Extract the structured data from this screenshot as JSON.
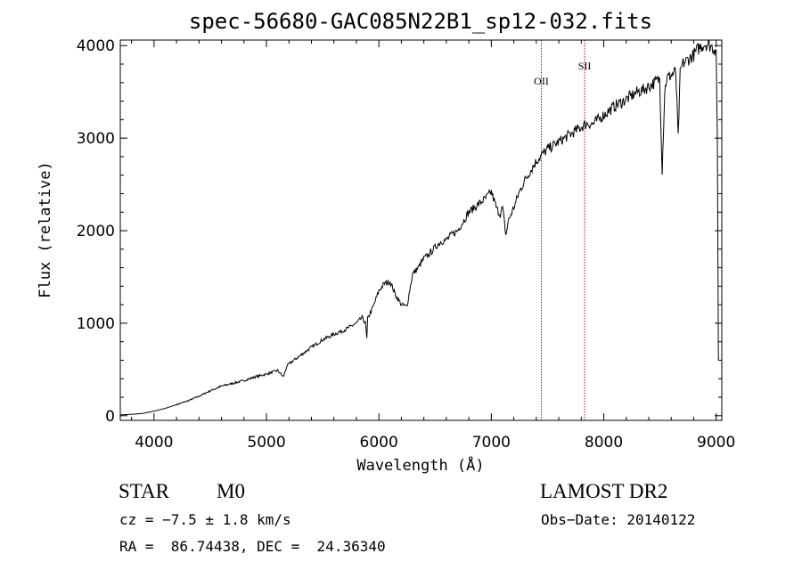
{
  "chart_data": {
    "type": "line",
    "title": "spec-56680-GAC085N22B1_sp12-032.fits",
    "xlabel": "Wavelength (Å)",
    "ylabel": "Flux (relative)",
    "xlim": [
      3700,
      9050
    ],
    "ylim": [
      -50,
      4060
    ],
    "xticks": [
      "4000",
      "5000",
      "6000",
      "7000",
      "8000",
      "9000"
    ],
    "yticks": [
      "0",
      "1000",
      "2000",
      "3000",
      "4000"
    ],
    "series": [
      {
        "x": [
          3700,
          3800,
          3900,
          4000,
          4100,
          4200,
          4300,
          4400,
          4500,
          4600,
          4700,
          4800,
          4900,
          5000,
          5100,
          5150,
          5180,
          5200,
          5300,
          5400,
          5500,
          5600,
          5700,
          5800,
          5850,
          5880,
          5893,
          5900,
          5950,
          6000,
          6050,
          6100,
          6150,
          6200,
          6250,
          6280,
          6300,
          6350,
          6400,
          6450,
          6500,
          6550,
          6600,
          6650,
          6700,
          6750,
          6800,
          6850,
          6900,
          6950,
          7000,
          7050,
          7080,
          7100,
          7130,
          7150,
          7200,
          7250,
          7300,
          7350,
          7400,
          7450,
          7500,
          7550,
          7600,
          7650,
          7700,
          7750,
          7800,
          7850,
          7900,
          7950,
          8000,
          8050,
          8100,
          8150,
          8200,
          8250,
          8300,
          8350,
          8400,
          8450,
          8498,
          8520,
          8542,
          8560,
          8600,
          8640,
          8662,
          8680,
          8700,
          8750,
          8800,
          8850,
          8900,
          8950,
          9000,
          9010,
          9020
        ],
        "y": [
          10,
          15,
          25,
          50,
          80,
          120,
          160,
          210,
          270,
          320,
          350,
          380,
          420,
          450,
          490,
          420,
          530,
          560,
          650,
          740,
          820,
          880,
          930,
          1000,
          1060,
          1000,
          830,
          1050,
          1180,
          1350,
          1430,
          1450,
          1300,
          1200,
          1180,
          1400,
          1530,
          1600,
          1700,
          1750,
          1820,
          1880,
          1900,
          1960,
          2000,
          2100,
          2200,
          2250,
          2300,
          2350,
          2420,
          2230,
          2180,
          2250,
          1950,
          2100,
          2250,
          2420,
          2550,
          2650,
          2750,
          2820,
          2880,
          2920,
          2960,
          3000,
          3040,
          3080,
          3120,
          3160,
          3150,
          3200,
          3250,
          3300,
          3350,
          3380,
          3420,
          3460,
          3500,
          3520,
          3560,
          3600,
          3640,
          2650,
          3500,
          3650,
          3680,
          3720,
          3000,
          3700,
          3800,
          3850,
          3900,
          3980,
          4020,
          4000,
          3950,
          3000,
          600
        ]
      }
    ],
    "markers": [
      {
        "label": "OII",
        "x": 7445
      },
      {
        "label": "SII",
        "x": 7830
      }
    ]
  },
  "info": {
    "object_class": "STAR",
    "subclass": "M0",
    "survey": "LAMOST DR2",
    "velocity": "cz = −7.5 ± 1.8 km/s",
    "obs_date": "Obs−Date: 20140122",
    "coordinates": "RA =  86.74438, DEC =  24.36340"
  },
  "colors": {
    "spectrum": "#000000",
    "marker_line": "#cc0000",
    "axes": "#000000"
  }
}
